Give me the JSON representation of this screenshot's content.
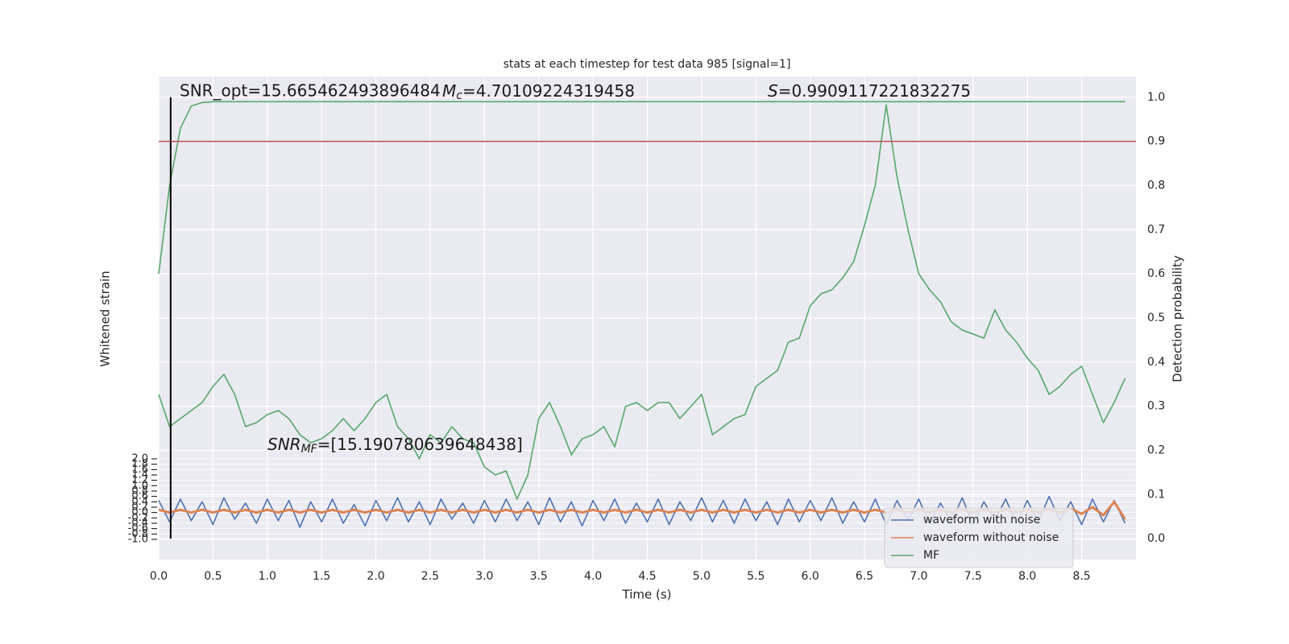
{
  "chart_data": {
    "type": "line",
    "title": "stats at each timestep for test data 985 [signal=1]",
    "xlabel": "Time (s)",
    "ylabel": "Whitened strain",
    "y2label": "Detection probability",
    "annotations": {
      "snr_opt": "SNR_opt=15.665462493896484",
      "mc_symbol": "M",
      "mc_sub": "c",
      "mc_text": "=4.70109224319458",
      "s_symbol": "S",
      "s_text": "=0.9909117221832275",
      "snr_mf_symbol": "SNR",
      "snr_mf_sub": "MF",
      "snr_mf_text": "=[15.190780639648438]"
    },
    "x": [
      0,
      0.1,
      0.2,
      0.3,
      0.4,
      0.5,
      0.6,
      0.7,
      0.8,
      0.9,
      1,
      1.1,
      1.2,
      1.3,
      1.4,
      1.5,
      1.6,
      1.7,
      1.8,
      1.9,
      2,
      2.1,
      2.2,
      2.3,
      2.4,
      2.5,
      2.6,
      2.7,
      2.8,
      2.9,
      3,
      3.1,
      3.2,
      3.3,
      3.4,
      3.5,
      3.6,
      3.7,
      3.8,
      3.9,
      4,
      4.1,
      4.2,
      4.3,
      4.4,
      4.5,
      4.6,
      4.7,
      4.8,
      4.9,
      5,
      5.1,
      5.2,
      5.3,
      5.4,
      5.5,
      5.6,
      5.7,
      5.8,
      5.9,
      6,
      6.1,
      6.2,
      6.3,
      6.4,
      6.5,
      6.6,
      6.7,
      6.8,
      6.9,
      7,
      7.1,
      7.2,
      7.3,
      7.4,
      7.5,
      7.6,
      7.7,
      7.8,
      7.9,
      8,
      8.1,
      8.2,
      8.3,
      8.4,
      8.5,
      8.6,
      8.7,
      8.8,
      8.9
    ],
    "series": [
      {
        "name": "waveform with noise",
        "color": "#4c72b0",
        "values": [
          0.45,
          -0.35,
          0.5,
          -0.3,
          0.4,
          -0.45,
          0.55,
          -0.25,
          0.35,
          -0.4,
          0.5,
          -0.3,
          0.45,
          -0.55,
          0.4,
          -0.35,
          0.5,
          -0.4,
          0.3,
          -0.5,
          0.45,
          -0.3,
          0.55,
          -0.35,
          0.4,
          -0.45,
          0.5,
          -0.25,
          0.35,
          -0.4,
          0.45,
          -0.35,
          0.5,
          -0.3,
          0.4,
          -0.45,
          0.55,
          -0.35,
          0.4,
          -0.5,
          0.45,
          -0.3,
          0.5,
          -0.4,
          0.35,
          -0.35,
          0.5,
          -0.45,
          0.4,
          -0.3,
          0.55,
          -0.35,
          0.45,
          -0.4,
          0.5,
          -0.3,
          0.4,
          -0.45,
          0.5,
          -0.35,
          0.45,
          -0.3,
          0.55,
          -0.4,
          0.4,
          -0.35,
          0.5,
          -0.45,
          0.45,
          -0.3,
          0.5,
          -0.4,
          0.35,
          -0.35,
          0.55,
          -0.45,
          0.4,
          -0.3,
          0.5,
          -0.4,
          0.45,
          -0.35,
          0.6,
          -0.3,
          0.4,
          -0.45,
          0.5,
          -0.35,
          0.45,
          -0.4
        ]
      },
      {
        "name": "waveform without noise",
        "color": "#dd8452",
        "values": [
          0.1,
          0.0,
          0.1,
          0.0,
          0.1,
          0.0,
          0.1,
          0.0,
          0.1,
          0.0,
          0.1,
          0.0,
          0.1,
          0.0,
          0.1,
          0.0,
          0.1,
          0.0,
          0.1,
          0.0,
          0.1,
          0.0,
          0.1,
          0.0,
          0.1,
          0.0,
          0.1,
          0.0,
          0.1,
          0.0,
          0.1,
          0.0,
          0.1,
          0.0,
          0.1,
          0.0,
          0.1,
          0.0,
          0.1,
          0.0,
          0.1,
          0.0,
          0.1,
          0.0,
          0.1,
          0.0,
          0.1,
          0.0,
          0.1,
          0.0,
          0.1,
          0.0,
          0.1,
          0.0,
          0.1,
          0.0,
          0.1,
          0.0,
          0.1,
          0.0,
          0.1,
          0.0,
          0.1,
          0.0,
          0.1,
          0.0,
          0.1,
          0.0,
          0.1,
          0.0,
          0.1,
          0.0,
          0.1,
          0.0,
          0.1,
          0.0,
          0.1,
          0.0,
          0.1,
          0.0,
          0.1,
          0.0,
          0.12,
          -0.02,
          0.15,
          -0.05,
          0.2,
          -0.1,
          0.4,
          -0.25
        ]
      },
      {
        "name": "MF",
        "color": "#55a868",
        "values": [
          4.4,
          3.2,
          3.5,
          3.8,
          4.1,
          4.7,
          5.15,
          4.4,
          3.2,
          3.35,
          3.65,
          3.8,
          3.5,
          2.9,
          2.6,
          2.75,
          3.05,
          3.5,
          3.05,
          3.5,
          4.1,
          4.4,
          3.2,
          2.75,
          2.0,
          2.9,
          2.6,
          3.2,
          2.75,
          2.6,
          1.7,
          1.4,
          1.55,
          0.5,
          1.4,
          3.5,
          4.1,
          3.2,
          2.15,
          2.75,
          2.9,
          3.2,
          2.45,
          3.95,
          4.1,
          3.8,
          4.1,
          4.1,
          3.5,
          3.95,
          4.4,
          2.9,
          3.2,
          3.5,
          3.65,
          4.7,
          5.0,
          5.3,
          6.35,
          6.5,
          7.7,
          8.15,
          8.3,
          8.75,
          9.35,
          10.7,
          12.2,
          15.19,
          12.5,
          10.55,
          8.9,
          8.3,
          7.85,
          7.1,
          6.8,
          6.65,
          6.5,
          7.55,
          6.8,
          6.35,
          5.75,
          5.3,
          4.4,
          4.7,
          5.15,
          5.45,
          4.4,
          3.35,
          4.1,
          5.0
        ]
      },
      {
        "color": "#55a868",
        "axis": "y2",
        "values": [
          0.6,
          0.8,
          0.93,
          0.98,
          0.988,
          0.99,
          0.99,
          0.99,
          0.99,
          0.99,
          0.99,
          0.99,
          0.99,
          0.99,
          0.99,
          0.99,
          0.99,
          0.99,
          0.99,
          0.99,
          0.99,
          0.99,
          0.99,
          0.99,
          0.99,
          0.99,
          0.99,
          0.99,
          0.99,
          0.99,
          0.99,
          0.99,
          0.99,
          0.99,
          0.99,
          0.99,
          0.99,
          0.99,
          0.99,
          0.99,
          0.99,
          0.99,
          0.99,
          0.99,
          0.99,
          0.99,
          0.99,
          0.99,
          0.99,
          0.99,
          0.99,
          0.99,
          0.99,
          0.99,
          0.99,
          0.99,
          0.99,
          0.99,
          0.99,
          0.99,
          0.99,
          0.99,
          0.99,
          0.99,
          0.99,
          0.99,
          0.99,
          0.99,
          0.99,
          0.99,
          0.99,
          0.99,
          0.99,
          0.99,
          0.99,
          0.99,
          0.99,
          0.99,
          0.99,
          0.99,
          0.99,
          0.99,
          0.99,
          0.99,
          0.99,
          0.99,
          0.99,
          0.99,
          0.99,
          0.99
        ]
      }
    ],
    "hlines": [
      {
        "value": 0.9,
        "color": "#c44e52",
        "axis": "y2"
      }
    ],
    "vlines": [
      {
        "value": 0.11,
        "color": "#000000"
      }
    ],
    "xlim": [
      0,
      9
    ],
    "xticks": [
      {
        "value": 0,
        "label": "0.0"
      },
      0.5,
      {
        "value": 1,
        "label": "1.0"
      },
      1.5,
      {
        "value": 2,
        "label": "2.0"
      },
      2.5,
      {
        "value": 3,
        "label": "3.0"
      },
      3.5,
      {
        "value": 4,
        "label": "4.0"
      },
      4.5,
      {
        "value": 5,
        "label": "5.0"
      },
      5.5,
      {
        "value": 6,
        "label": "6.0"
      },
      6.5,
      {
        "value": 7,
        "label": "7.0"
      },
      7.5,
      {
        "value": 8,
        "label": "8.0"
      },
      8.5
    ],
    "ylim": [
      -1.75,
      16.25
    ],
    "yticks": [
      {
        "value": -1,
        "label": "-1.0"
      },
      -0.8,
      -0.6,
      -0.4,
      -0.2,
      {
        "value": 0,
        "label": "0.0"
      },
      0.2,
      0.4,
      0.6,
      0.8,
      {
        "value": 1,
        "label": "1.0"
      },
      1.2,
      1.4,
      1.6,
      1.8,
      {
        "value": 2,
        "label": "2.0"
      }
    ],
    "y2lim": [
      -0.047,
      1.047
    ],
    "y2ticks": [
      {
        "value": 0,
        "label": "0.0"
      },
      0.1,
      0.2,
      0.3,
      0.4,
      0.5,
      0.6,
      0.7,
      0.8,
      0.9,
      {
        "value": 1,
        "label": "1.0"
      }
    ],
    "grid": true,
    "legend": "lower right"
  }
}
